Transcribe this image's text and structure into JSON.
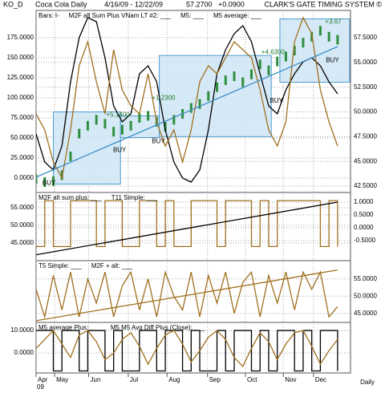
{
  "header": {
    "symbol": "KO_D",
    "name": "Coca Cola Daily",
    "range": "4/16/09 - 12/22/09",
    "last": "57.2700",
    "change": "+0.0900",
    "brand": "CLARK'S GATE TIMING SYSTEM ©"
  },
  "footer": {
    "year": "09",
    "period": "Daily"
  },
  "chart_data": [
    {
      "type": "line",
      "x": [
        0,
        1,
        2,
        3,
        4,
        5,
        6,
        7,
        8,
        9,
        10,
        11,
        12,
        13,
        14,
        15,
        16,
        17,
        18,
        19,
        20,
        21,
        22,
        23,
        24,
        25,
        26,
        27,
        28,
        29,
        30,
        31,
        32,
        33,
        34,
        35
      ],
      "ylim": [
        -18,
        209
      ],
      "yticks": [
        {
          "value": 0,
          "label": "0.0000"
        },
        {
          "value": 25,
          "label": "25.0000"
        },
        {
          "value": 50,
          "label": "50.0000"
        },
        {
          "value": 75,
          "label": "75.0000"
        },
        {
          "value": 100,
          "label": "100.0000"
        },
        {
          "value": 125,
          "label": "125.0000"
        },
        {
          "value": 150,
          "label": "150.0000"
        },
        {
          "value": 175,
          "label": "175.0000"
        }
      ],
      "y2lim": [
        41.85,
        60.26
      ],
      "y2ticks": [
        {
          "value": 42.5,
          "label": "42.5000"
        },
        {
          "value": 45,
          "label": "45.0000"
        },
        {
          "value": 47.5,
          "label": "47.5000"
        },
        {
          "value": 50,
          "label": "50.0000"
        },
        {
          "value": 52.5,
          "label": "52.5000"
        },
        {
          "value": 55,
          "label": "55.0000"
        },
        {
          "value": 57.5,
          "label": "57.5000"
        }
      ],
      "box_color": "#cfe5f4",
      "boxes": [
        {
          "x": [
            2,
            9.8
          ],
          "y": [
            42.7,
            50
          ]
        },
        {
          "x": [
            9.8,
            14.3
          ],
          "y": [
            47.4,
            49.6
          ]
        },
        {
          "x": [
            14.3,
            27.3
          ],
          "y": [
            47.5,
            55.7
          ]
        },
        {
          "x": [
            28.3,
            36.4
          ],
          "y": [
            53,
            59.4
          ]
        }
      ],
      "series": [
        {
          "name": "Bars: I-",
          "style": "bars",
          "axis": "y2",
          "color": "#2f8f3f",
          "values": [
            43.2,
            42.9,
            43.0,
            43.6,
            45.5,
            47.8,
            48.6,
            49.2,
            48.8,
            48.0,
            48.2,
            48.6,
            49.4,
            49.6,
            49.0,
            48.5,
            49.2,
            49.8,
            50.4,
            50.8,
            51.6,
            52.5,
            53.2,
            53.6,
            53.0,
            53.8,
            54.8,
            54.2,
            55.1,
            55.6,
            56.2,
            57.0,
            57.6,
            58.2,
            57.6,
            57.3
          ]
        },
        {
          "name": "M2F alt Sum Plus VNam LT #2: ___",
          "color": "#000000",
          "values": [
            55,
            20,
            10,
            40,
            120,
            175,
            200,
            195,
            150,
            90,
            70,
            80,
            130,
            140,
            120,
            60,
            20,
            0,
            -5,
            10,
            60,
            130,
            160,
            180,
            190,
            170,
            130,
            90,
            80,
            110,
            130,
            145,
            150,
            140,
            120,
            105
          ]
        },
        {
          "name": "M5: ___",
          "color": "#a0701e",
          "values": [
            80,
            60,
            20,
            0,
            60,
            140,
            170,
            120,
            80,
            160,
            110,
            90,
            80,
            130,
            70,
            40,
            60,
            20,
            60,
            120,
            140,
            130,
            150,
            170,
            160,
            150,
            110,
            60,
            40,
            70,
            170,
            200,
            180,
            110,
            70,
            40
          ]
        },
        {
          "name": "M5 average: ___",
          "axis": "y2",
          "color": "#3b8fc8",
          "x": [
            0,
            35
          ],
          "values": [
            43.4,
            56.6
          ]
        }
      ],
      "annotations": [
        {
          "text": "+5.1400",
          "x": 9.5,
          "y": 49.7,
          "color": "#1f7a2e"
        },
        {
          "text": "+1.2300",
          "x": 14.8,
          "y": 51.4,
          "color": "#1f7a2e"
        },
        {
          "text": "+4.6300",
          "x": 27.5,
          "y": 56.0,
          "color": "#1f7a2e"
        },
        {
          "text": "+3.67",
          "x": 34.5,
          "y": 59.1,
          "color": "#1f7a2e"
        },
        {
          "text": "BUY",
          "x": 1.5,
          "y": 42.8,
          "color": "#000000"
        },
        {
          "text": "BUY",
          "x": 9.7,
          "y": 46.1,
          "color": "#000000"
        },
        {
          "text": "BUY",
          "x": 14.2,
          "y": 47.0,
          "color": "#000000"
        },
        {
          "text": "BUY",
          "x": 27.9,
          "y": 51.1,
          "color": "#000000"
        },
        {
          "text": "BUY",
          "x": 34.4,
          "y": 55.2,
          "color": "#000000"
        }
      ]
    },
    {
      "type": "line",
      "x": [
        0,
        1,
        2,
        3,
        4,
        5,
        6,
        7,
        8,
        9,
        10,
        11,
        12,
        13,
        14,
        15,
        16,
        17,
        18,
        19,
        20,
        21,
        22,
        23,
        24,
        25,
        26,
        27,
        28,
        29,
        30,
        31,
        32,
        33,
        34,
        35
      ],
      "ylim": [
        40,
        59.3
      ],
      "yticks": [
        {
          "value": 45,
          "label": "45.0000"
        },
        {
          "value": 50,
          "label": "50.0000"
        },
        {
          "value": 55,
          "label": "55.0000"
        }
      ],
      "y2lim": [
        -1.28,
        1.375
      ],
      "y2ticks": [
        {
          "value": -0.5,
          "label": "-0.5000"
        },
        {
          "value": 0,
          "label": "0.0000"
        },
        {
          "value": 0.5,
          "label": "0.5000"
        },
        {
          "value": 1,
          "label": "1.0000"
        }
      ],
      "series": [
        {
          "name": "M2F alt sum plus: ___",
          "color": "#a0701e",
          "style": "step",
          "values": [
            44,
            57,
            44,
            44,
            57,
            57,
            57,
            44,
            57,
            57,
            44,
            44,
            57,
            57,
            44,
            57,
            44,
            44,
            57,
            57,
            57,
            44,
            57,
            57,
            57,
            44,
            57,
            44,
            57,
            57,
            57,
            57,
            57,
            44,
            57,
            44
          ]
        },
        {
          "name": "T11 Simple: ___",
          "axis": "y2",
          "color": "#000000",
          "x": [
            0,
            35
          ],
          "values": [
            -1.05,
            1.0
          ]
        }
      ]
    },
    {
      "type": "line",
      "x": [
        0,
        1,
        2,
        3,
        4,
        5,
        6,
        7,
        8,
        9,
        10,
        11,
        12,
        13,
        14,
        15,
        16,
        17,
        18,
        19,
        20,
        21,
        22,
        23,
        24,
        25,
        26,
        27,
        28,
        29,
        30,
        31,
        32,
        33,
        34,
        35
      ],
      "y2lim": [
        42.4,
        60.3
      ],
      "y2ticks": [
        {
          "value": 45,
          "label": "45.0000"
        },
        {
          "value": 50,
          "label": "50.0000"
        },
        {
          "value": 55,
          "label": "55.0000"
        }
      ],
      "series": [
        {
          "name": "T5 Simple: ___",
          "axis": "y2",
          "color": "#a0701e",
          "x": [
            0,
            35
          ],
          "values": [
            42.9,
            57.6
          ]
        },
        {
          "name": "M2F + alt: ___",
          "axis": "y2",
          "color": "#a0701e",
          "values": [
            52,
            44,
            56,
            46,
            57,
            44,
            55,
            48,
            57,
            44,
            53,
            57,
            46,
            55,
            44,
            57,
            50,
            46,
            57,
            44,
            56,
            48,
            57,
            45,
            54,
            57,
            44,
            56,
            48,
            57,
            46,
            57,
            52,
            57,
            44,
            47
          ]
        }
      ]
    },
    {
      "type": "line",
      "x": [
        0,
        1,
        2,
        3,
        4,
        5,
        6,
        7,
        8,
        9,
        10,
        11,
        12,
        13,
        14,
        15,
        16,
        17,
        18,
        19,
        20,
        21,
        22,
        23,
        24,
        25,
        26,
        27,
        28,
        29,
        30,
        31,
        32,
        33,
        34,
        35
      ],
      "xlim": [
        0,
        36.5
      ],
      "xticks": [
        {
          "value": 0,
          "label": "Apr"
        },
        {
          "value": 2.15,
          "label": "May"
        },
        {
          "value": 6.1,
          "label": "Jun"
        },
        {
          "value": 10.7,
          "label": "Jul"
        },
        {
          "value": 15.2,
          "label": "Aug"
        },
        {
          "value": 19.9,
          "label": "Sep"
        },
        {
          "value": 24.3,
          "label": "Oct"
        },
        {
          "value": 28.7,
          "label": "Nov"
        },
        {
          "value": 32.2,
          "label": "Dec"
        }
      ],
      "ylim": [
        -8.9,
        13.6
      ],
      "yticks": [
        {
          "value": 0,
          "label": "0.0000"
        },
        {
          "value": 10,
          "label": "10.0000"
        }
      ],
      "series": [
        {
          "name": "M5 average Plus: ___",
          "color": "#000000",
          "style": "step",
          "values": [
            10,
            10,
            -8,
            10,
            10,
            -8,
            10,
            10,
            -8,
            10,
            -8,
            -8,
            10,
            10,
            -8,
            10,
            10,
            -8,
            10,
            -8,
            -8,
            10,
            -8,
            10,
            10,
            -8,
            10,
            -8,
            10,
            10,
            -8,
            10,
            -8,
            10,
            10,
            -8
          ]
        },
        {
          "name": "M5 M5 Avg Diff Plus (Close): ___",
          "color": "#a0701e",
          "values": [
            2,
            6,
            10,
            4,
            -2,
            8,
            10,
            5,
            -3,
            0,
            6,
            9,
            3,
            -5,
            2,
            8,
            10,
            4,
            -4,
            1,
            7,
            10,
            6,
            -2,
            -6,
            2,
            9,
            5,
            -3,
            4,
            9,
            10,
            3,
            -5,
            1,
            6
          ]
        }
      ]
    }
  ]
}
